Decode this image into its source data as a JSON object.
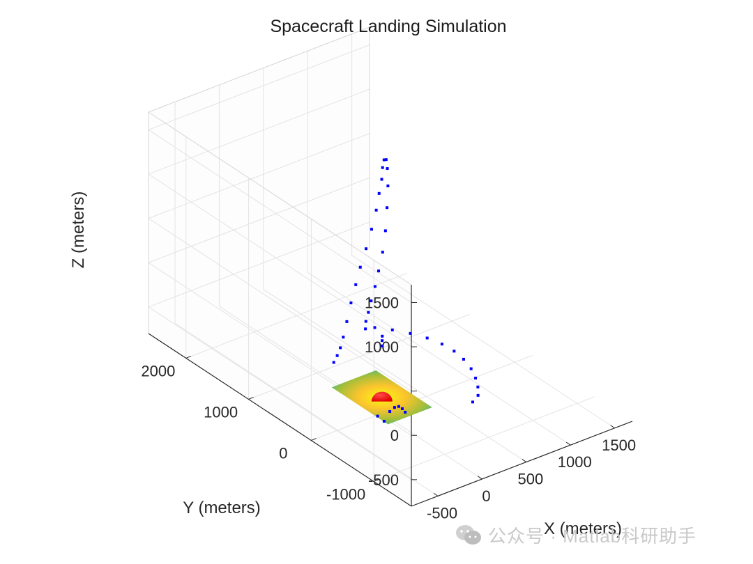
{
  "chart_data": {
    "type": "scatter3d",
    "title": "Spacecraft Landing Simulation",
    "xlabel": "X (meters)",
    "ylabel": "Y (meters)",
    "zlabel": "Z (meters)",
    "xlim": [
      -800,
      1700
    ],
    "ylim": [
      -1600,
      2600
    ],
    "zlim": [
      -800,
      1700
    ],
    "x_ticks": [
      -500,
      0,
      500,
      1000,
      1500
    ],
    "y_ticks": [
      -1000,
      0,
      1000,
      2000
    ],
    "z_ticks": [
      -500,
      0,
      500,
      1000,
      1500
    ],
    "x_tick_labels": [
      "-500",
      "0",
      "500",
      "1000",
      "1500"
    ],
    "y_tick_labels": [
      "-1000",
      "0",
      "1000",
      "2000"
    ],
    "z_tick_labels": [
      "-500",
      "0",
      "500",
      "1000",
      "1500"
    ],
    "grid": true,
    "view": {
      "azimuth": -37.5,
      "elevation": 30
    },
    "trajectory": {
      "name": "spacecraft trajectory",
      "marker": "square",
      "color": "#0000ff",
      "points": [
        [
          0,
          -1450,
          0
        ],
        [
          110,
          -1380,
          0
        ],
        [
          200,
          -1250,
          0
        ],
        [
          280,
          -1100,
          0
        ],
        [
          350,
          -930,
          0
        ],
        [
          400,
          -740,
          0
        ],
        [
          420,
          -560,
          0
        ],
        [
          410,
          -380,
          0
        ],
        [
          370,
          -200,
          0
        ],
        [
          300,
          -30,
          0
        ],
        [
          210,
          130,
          0
        ],
        [
          110,
          270,
          0
        ],
        [
          -10,
          250,
          40
        ],
        [
          -40,
          200,
          160
        ],
        [
          -40,
          160,
          280
        ],
        [
          -30,
          130,
          420
        ],
        [
          0,
          110,
          580
        ],
        [
          40,
          110,
          740
        ],
        [
          100,
          130,
          920
        ],
        [
          160,
          170,
          1120
        ],
        [
          220,
          230,
          1330
        ],
        [
          280,
          300,
          1520
        ],
        [
          330,
          380,
          1660
        ],
        [
          380,
          470,
          1700
        ],
        [
          420,
          560,
          1640
        ],
        [
          460,
          640,
          1500
        ],
        [
          500,
          710,
          1320
        ],
        [
          520,
          780,
          1120
        ],
        [
          530,
          840,
          900
        ],
        [
          520,
          900,
          660
        ],
        [
          500,
          960,
          420
        ],
        [
          470,
          1010,
          200
        ],
        [
          440,
          1040,
          0
        ],
        [
          400,
          1060,
          -200
        ],
        [
          360,
          1070,
          -400
        ],
        [
          320,
          1070,
          -560
        ],
        [
          280,
          1060,
          -660
        ],
        [
          230,
          1040,
          -720
        ],
        [
          170,
          1010,
          -760
        ],
        [
          -60,
          -210,
          -660
        ],
        [
          -20,
          -230,
          -620
        ],
        [
          20,
          -240,
          -620
        ],
        [
          60,
          -240,
          -660
        ],
        [
          100,
          -230,
          -720
        ],
        [
          -110,
          -190,
          -760
        ],
        [
          -120,
          -100,
          -740
        ],
        [
          0,
          0,
          -40
        ],
        [
          30,
          40,
          -10
        ],
        [
          60,
          80,
          10
        ]
      ]
    },
    "terrain": {
      "name": "landing surface",
      "colormap": "parula",
      "center": [
        0,
        0
      ],
      "half_width_x": 250,
      "half_width_y": 450,
      "z": -620
    },
    "landing_marker": {
      "name": "landing target",
      "shape": "hemisphere",
      "color": "#ff0000",
      "center": [
        0,
        0,
        -620
      ],
      "radius": 70
    }
  },
  "watermark": {
    "text": "公众号 · Matlab科研助手"
  }
}
